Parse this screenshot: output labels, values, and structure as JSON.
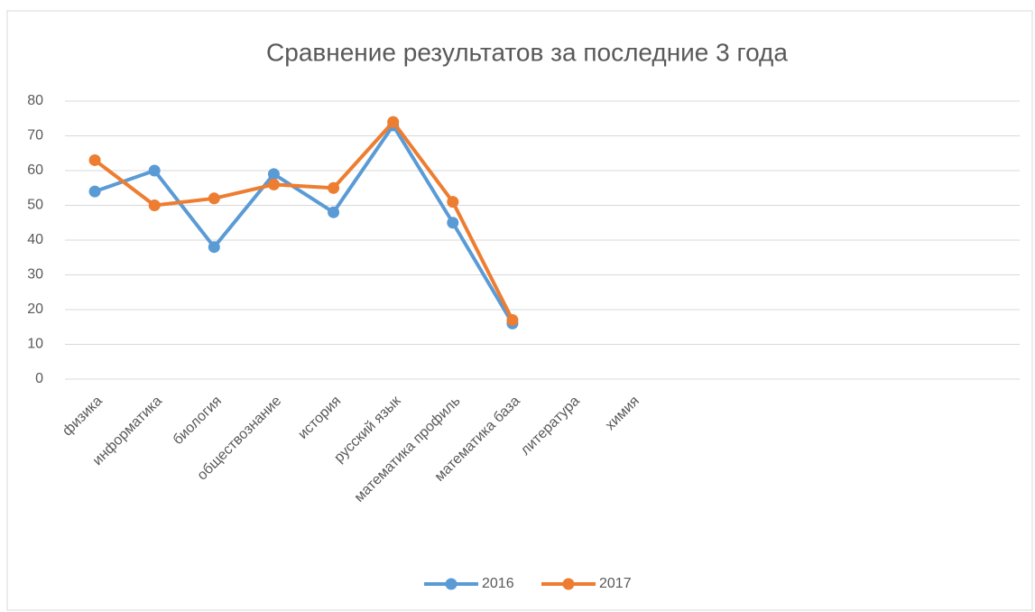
{
  "chart_data": {
    "type": "line",
    "title": "Сравнение результатов за последние 3 года",
    "categories": [
      "физика",
      "информатика",
      "биология",
      "обществознание",
      "история",
      "русский язык",
      "математика профиль",
      "математика база",
      "литература",
      "химия",
      null,
      null,
      null,
      null,
      null,
      null
    ],
    "series": [
      {
        "name": "2016",
        "color": "#5b9bd5",
        "values": [
          54,
          60,
          38,
          59,
          48,
          73,
          45,
          16,
          null,
          null,
          null,
          null,
          null,
          null,
          null,
          null
        ]
      },
      {
        "name": "2017",
        "color": "#ed7d31",
        "values": [
          63,
          50,
          52,
          56,
          55,
          74,
          51,
          17,
          null,
          null,
          null,
          null,
          null,
          null,
          null,
          null
        ]
      }
    ],
    "ylim": [
      0,
      80
    ],
    "yticks": [
      0,
      10,
      20,
      30,
      40,
      50,
      60,
      70,
      80
    ],
    "grid": true,
    "legend": "bottom"
  }
}
